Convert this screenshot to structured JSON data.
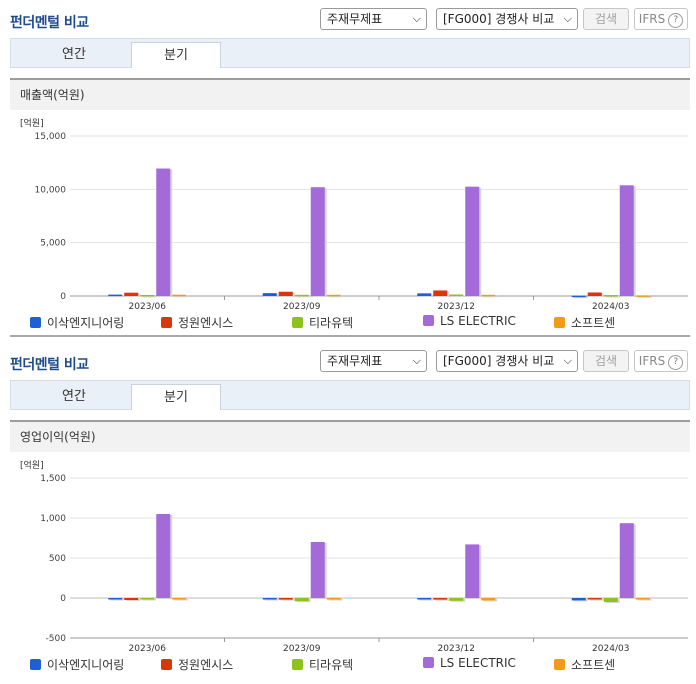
{
  "panels": [
    {
      "title": "펀더멘털 비교",
      "select_statement": "주재무제표",
      "select_group": "[FG000] 경쟁사 비교",
      "search_label": "검색",
      "ifrs_label": "IFRS",
      "tabs": [
        "연간",
        "분기"
      ],
      "active_tab": 1,
      "metric_label": "매출액(억원)"
    },
    {
      "title": "펀더멘털 비교",
      "select_statement": "주재무제표",
      "select_group": "[FG000] 경쟁사 비교",
      "search_label": "검색",
      "ifrs_label": "IFRS",
      "tabs": [
        "연간",
        "분기"
      ],
      "active_tab": 1,
      "metric_label": "영업이익(억원)"
    }
  ],
  "chart_data": [
    {
      "type": "bar",
      "unit_label": "[억원]",
      "categories": [
        "2023/06",
        "2023/09",
        "2023/12",
        "2024/03"
      ],
      "ylim": [
        0,
        15000
      ],
      "yticks": [
        0,
        5000,
        10000,
        15000
      ],
      "ytick_labels": [
        "0",
        "5,000",
        "10,000",
        "15,000"
      ],
      "legend_position": "bottom",
      "series": [
        {
          "name": "이삭엔지니어링",
          "color": "#1f5fd6",
          "values": [
            130,
            270,
            250,
            30
          ]
        },
        {
          "name": "정원엔시스",
          "color": "#d9350f",
          "values": [
            310,
            400,
            520,
            330
          ]
        },
        {
          "name": "티라유텍",
          "color": "#8ec31d",
          "values": [
            100,
            110,
            140,
            90
          ]
        },
        {
          "name": "LS ELECTRIC",
          "color": "#a56ad9",
          "values": [
            11950,
            10200,
            10250,
            10380
          ]
        },
        {
          "name": "소프트센",
          "color": "#f39a1a",
          "values": [
            120,
            110,
            110,
            60
          ]
        }
      ]
    },
    {
      "type": "bar",
      "unit_label": "[억원]",
      "categories": [
        "2023/06",
        "2023/09",
        "2023/12",
        "2024/03"
      ],
      "ylim": [
        -500,
        1500
      ],
      "yticks": [
        -500,
        0,
        500,
        1000,
        1500
      ],
      "ytick_labels": [
        "-500",
        "0",
        "500",
        "1,000",
        "1,500"
      ],
      "legend_position": "bottom",
      "series": [
        {
          "name": "이삭엔지니어링",
          "color": "#1f5fd6",
          "values": [
            -5,
            -10,
            -5,
            -30
          ]
        },
        {
          "name": "정원엔시스",
          "color": "#d9350f",
          "values": [
            -25,
            -20,
            -20,
            -10
          ]
        },
        {
          "name": "티라유텍",
          "color": "#8ec31d",
          "values": [
            -10,
            -40,
            -35,
            -50
          ]
        },
        {
          "name": "LS ELECTRIC",
          "color": "#a56ad9",
          "values": [
            1050,
            700,
            670,
            935
          ]
        },
        {
          "name": "소프트센",
          "color": "#f39a1a",
          "values": [
            -5,
            -10,
            -30,
            -10
          ]
        }
      ]
    }
  ]
}
